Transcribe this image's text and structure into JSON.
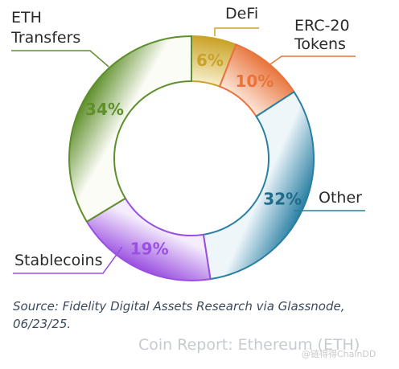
{
  "chart_data": {
    "type": "pie",
    "donut": true,
    "slices": [
      {
        "label": "DeFi",
        "value": 6,
        "display": "6%",
        "color": "#c9a227",
        "light": "#f7edc7",
        "text_color": "#c9a227"
      },
      {
        "label": "ERC-20\nTokens",
        "value": 10,
        "display": "10%",
        "color": "#e8743b",
        "light": "#fbe1d2",
        "text_color": "#e8743b"
      },
      {
        "label": "Other",
        "value": 32,
        "display": "32%",
        "color": "#2a7fa3",
        "light": "#eef6fa",
        "text_color": "#1f6a8a"
      },
      {
        "label": "Stablecoins",
        "value": 19,
        "display": "19%",
        "color": "#9a4fe0",
        "light": "#f5ecfd",
        "text_color": "#9a4fe0"
      },
      {
        "label": "ETH\nTransfers",
        "value": 34,
        "display": "34%",
        "color": "#5e8f2a",
        "light": "#fbfcf6",
        "text_color": "#5e8f2a"
      }
    ],
    "legend": "none"
  },
  "source_note": "Source: Fidelity Digital Assets Research via Glassnode, 06/23/25.",
  "footer_title": "Coin Report: Ethereum (ETH)",
  "watermark": "@链得得ChainDD"
}
